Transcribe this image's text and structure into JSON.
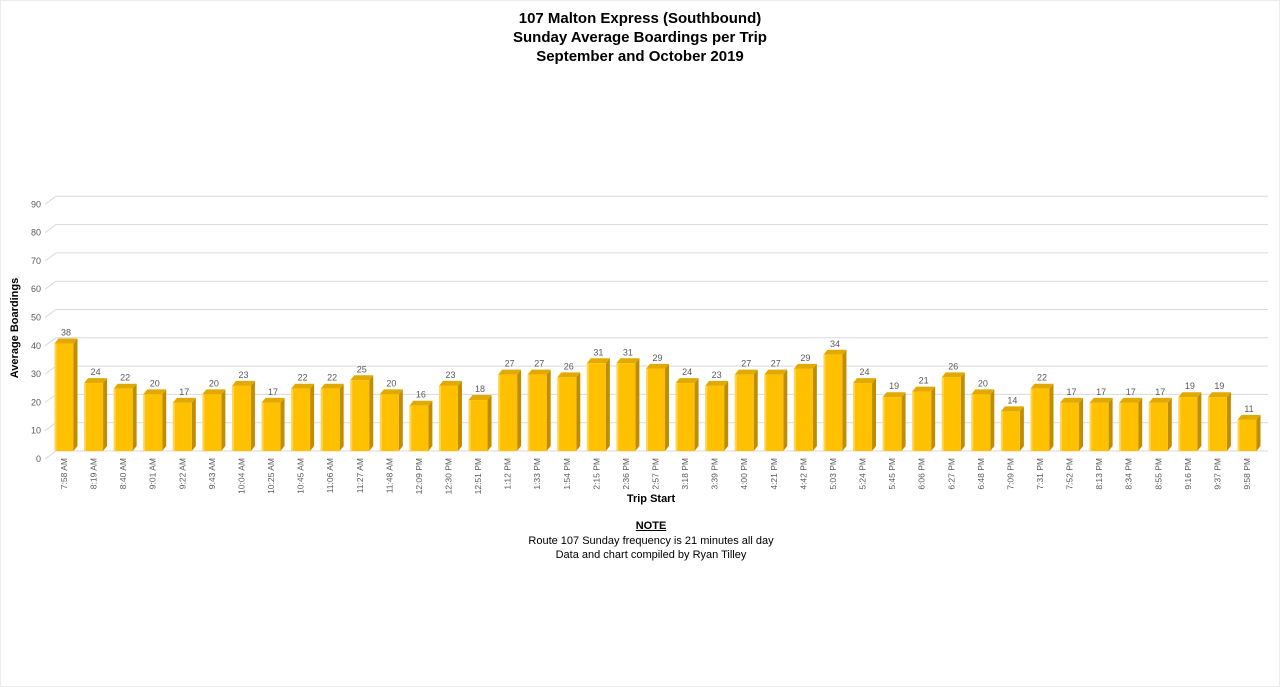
{
  "chart_data": {
    "type": "bar",
    "style": "3d-column",
    "title_lines": [
      "107 Malton Express (Southbound)",
      "Sunday Average Boardings per Trip",
      "September and October 2019"
    ],
    "xlabel": "Trip Start",
    "ylabel": "Average Boardings",
    "categories": [
      "7:58 AM",
      "8:19 AM",
      "8:40 AM",
      "9:01 AM",
      "9:22 AM",
      "9:43 AM",
      "10:04 AM",
      "10:25 AM",
      "10:45 AM",
      "11:06 AM",
      "11:27 AM",
      "11:48 AM",
      "12:09 PM",
      "12:30 PM",
      "12:51 PM",
      "1:12 PM",
      "1:33 PM",
      "1:54 PM",
      "2:15 PM",
      "2:36 PM",
      "2:57 PM",
      "3:18 PM",
      "3:39 PM",
      "4:00 PM",
      "4:21 PM",
      "4:42 PM",
      "5:03 PM",
      "5:24 PM",
      "5:45 PM",
      "6:06 PM",
      "6:27 PM",
      "6:48 PM",
      "7:09 PM",
      "7:31 PM",
      "7:52 PM",
      "8:13 PM",
      "8:34 PM",
      "8:55 PM",
      "9:16 PM",
      "9:37 PM",
      "9:58 PM"
    ],
    "values": [
      38,
      24,
      22,
      20,
      17,
      20,
      23,
      17,
      22,
      22,
      25,
      20,
      16,
      23,
      18,
      27,
      27,
      26,
      31,
      31,
      29,
      24,
      23,
      27,
      27,
      29,
      34,
      24,
      19,
      21,
      26,
      20,
      14,
      22,
      17,
      17,
      17,
      17,
      19,
      19,
      11
    ],
    "ylim": [
      0,
      90
    ],
    "ytick_labels": [
      "0",
      "10",
      "20",
      "30",
      "40",
      "50",
      "60",
      "70",
      "80",
      "90"
    ],
    "grid": true,
    "legend": false,
    "colors": {
      "bar_front": "#FFC000",
      "bar_side": "#C18D00",
      "bar_top": "#E2A900",
      "bar_highlight": "rgba(255,255,255,0.32)",
      "gridline": "#D9D9D9",
      "axis_label": "#595959",
      "title": "#000000"
    }
  },
  "note": {
    "heading": "NOTE",
    "lines": [
      "Route 107 Sunday frequency is 21 minutes all day",
      "Data and chart compiled by Ryan Tilley"
    ]
  }
}
